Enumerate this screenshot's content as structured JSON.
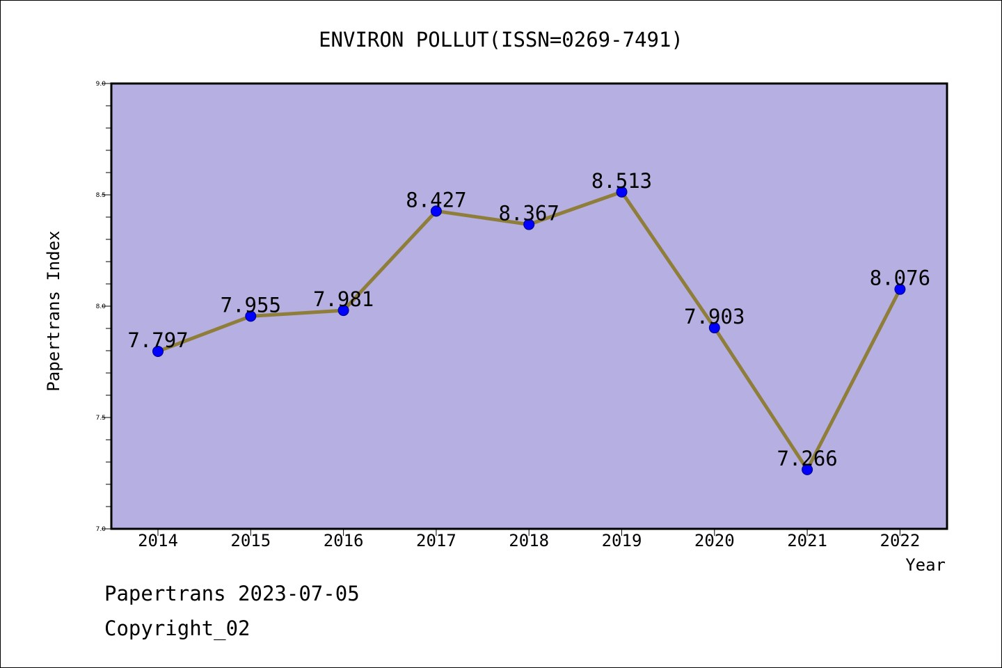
{
  "chart_data": {
    "type": "line",
    "title": "ENVIRON POLLUT(ISSN=0269-7491)",
    "xlabel": "Year",
    "ylabel": "Papertrans Index",
    "categories": [
      "2014",
      "2015",
      "2016",
      "2017",
      "2018",
      "2019",
      "2020",
      "2021",
      "2022"
    ],
    "values": [
      7.797,
      7.955,
      7.981,
      8.427,
      8.367,
      8.513,
      7.903,
      7.266,
      8.076
    ],
    "data_labels": [
      "7.797",
      "7.955",
      "7.981",
      "8.427",
      "8.367",
      "8.513",
      "7.903",
      "7.266",
      "8.076"
    ],
    "ylim": [
      7.0,
      9.0
    ],
    "yticks": [
      7.0,
      7.5,
      8.0,
      8.5,
      9.0
    ],
    "ytick_labels": [
      "7.0",
      "7.5",
      "8.0",
      "8.5",
      "9.0"
    ],
    "grid": false,
    "legend": "none"
  },
  "footer": {
    "date_line": "Papertrans 2023-07-05",
    "copyright": "Copyright_02"
  },
  "colors": {
    "plot_background": "#b5afe2",
    "line": "#8f7e3a",
    "marker": "#0000ff",
    "marker_edge": "#000080"
  }
}
